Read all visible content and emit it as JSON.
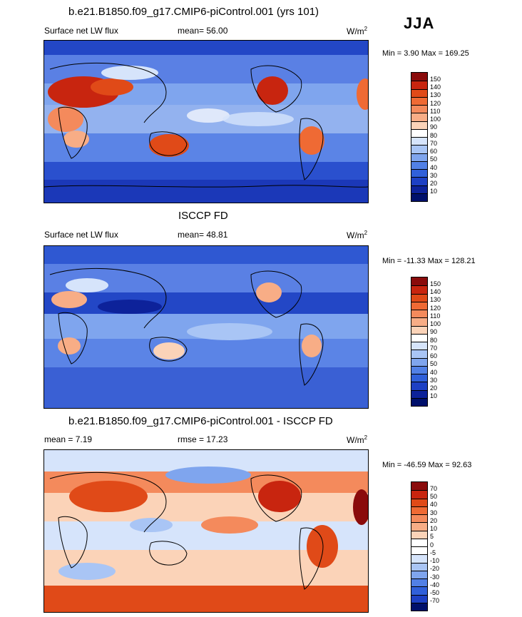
{
  "season": "JJA",
  "panels": [
    {
      "title": "b.e21.B1850.f09_g17.CMIP6-piControl.001 (yrs 101)",
      "left_label": "Surface net LW flux",
      "center_label": "mean=  56.00",
      "units": "W/m",
      "units_sup": "2",
      "minmax": "Min =   3.90 Max = 169.25",
      "colorbar": {
        "levels": [
          "150",
          "140",
          "130",
          "120",
          "110",
          "100",
          "90",
          "80",
          "70",
          "60",
          "50",
          "40",
          "30",
          "20",
          "10"
        ],
        "colors": [
          "#8a0b0b",
          "#c8250f",
          "#e04a18",
          "#ef6a34",
          "#f48a5c",
          "#f8ad86",
          "#fbd3b8",
          "#ffffff",
          "#d6e4fb",
          "#a9c5f5",
          "#7fa5ee",
          "#5180e6",
          "#3060da",
          "#1d40c4",
          "#0d229a",
          "#00106b"
        ]
      },
      "chart_data": {
        "type": "heatmap",
        "variable": "Surface net LW flux",
        "season": "JJA",
        "mean": 56.0,
        "min": 3.9,
        "max": 169.25
      }
    },
    {
      "title": "ISCCP FD",
      "left_label": "Surface net LW flux",
      "center_label": "mean=  48.81",
      "units": "W/m",
      "units_sup": "2",
      "minmax": "Min = -11.33 Max = 128.21",
      "colorbar": {
        "levels": [
          "150",
          "140",
          "130",
          "120",
          "110",
          "100",
          "90",
          "80",
          "70",
          "60",
          "50",
          "40",
          "30",
          "20",
          "10"
        ],
        "colors": [
          "#8a0b0b",
          "#c8250f",
          "#e04a18",
          "#ef6a34",
          "#f48a5c",
          "#f8ad86",
          "#fbd3b8",
          "#ffffff",
          "#d6e4fb",
          "#a9c5f5",
          "#7fa5ee",
          "#5180e6",
          "#3060da",
          "#1d40c4",
          "#0d229a",
          "#00106b"
        ]
      },
      "chart_data": {
        "type": "heatmap",
        "variable": "Surface net LW flux",
        "season": "JJA",
        "mean": 48.81,
        "min": -11.33,
        "max": 128.21
      }
    },
    {
      "title": "b.e21.B1850.f09_g17.CMIP6-piControl.001 - ISCCP FD",
      "left_label": "mean =  7.19",
      "center_label": "rmse =  17.23",
      "units": "W/m",
      "units_sup": "2",
      "minmax": "Min = -46.59 Max =  92.63",
      "colorbar": {
        "levels": [
          "70",
          "50",
          "40",
          "30",
          "20",
          "10",
          "5",
          "0",
          "-5",
          "-10",
          "-20",
          "-30",
          "-40",
          "-50",
          "-70"
        ],
        "colors": [
          "#8a0b0b",
          "#c8250f",
          "#e04a18",
          "#ef6a34",
          "#f48a5c",
          "#f8ad86",
          "#fbd3b8",
          "#ffffff",
          "#ffffff",
          "#d6e4fb",
          "#a9c5f5",
          "#7fa5ee",
          "#5180e6",
          "#3060da",
          "#1d40c4",
          "#00106b"
        ]
      },
      "chart_data": {
        "type": "heatmap",
        "variable": "Surface net LW flux difference",
        "season": "JJA",
        "mean": 7.19,
        "rmse": 17.23,
        "min": -46.59,
        "max": 92.63
      }
    }
  ]
}
